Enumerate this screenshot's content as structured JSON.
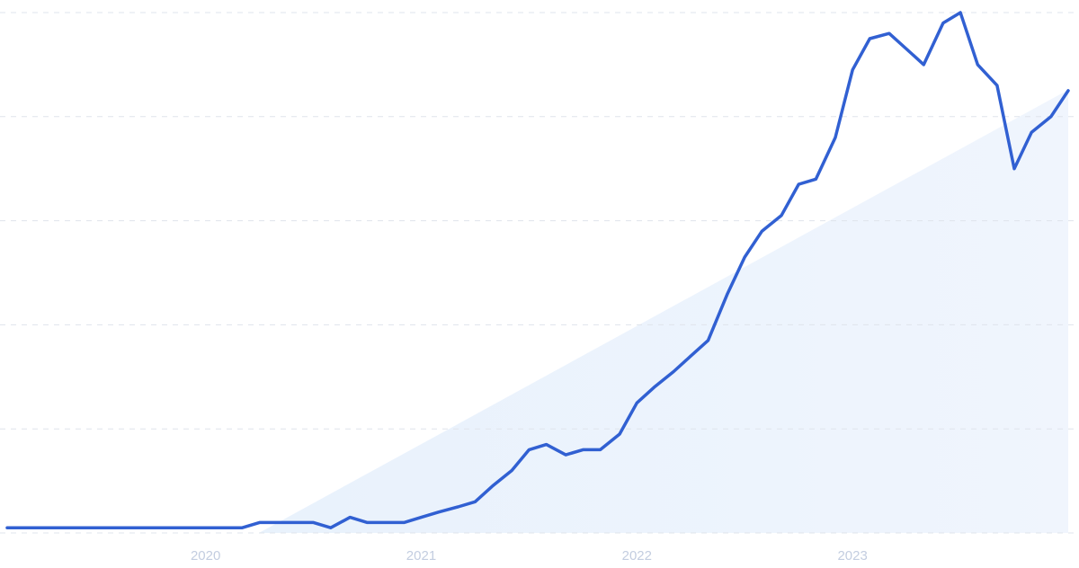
{
  "chart_data": {
    "type": "line",
    "x": [
      2019.08,
      2019.17,
      2019.25,
      2019.33,
      2019.42,
      2019.5,
      2019.58,
      2019.67,
      2019.75,
      2019.83,
      2019.92,
      2020,
      2020.08,
      2020.17,
      2020.25,
      2020.33,
      2020.42,
      2020.5,
      2020.58,
      2020.67,
      2020.75,
      2020.83,
      2020.92,
      2021,
      2021.08,
      2021.17,
      2021.25,
      2021.33,
      2021.42,
      2021.5,
      2021.58,
      2021.67,
      2021.75,
      2021.83,
      2021.92,
      2022,
      2022.08,
      2022.17,
      2022.25,
      2022.33,
      2022.42,
      2022.5,
      2022.58,
      2022.67,
      2022.75,
      2022.83,
      2022.92,
      2023,
      2023.08,
      2023.17,
      2023.25,
      2023.33,
      2023.42,
      2023.5,
      2023.58,
      2023.67,
      2023.75,
      2023.83,
      2023.92,
      2024
    ],
    "series": [
      {
        "color": "#3160d2",
        "values": [
          1,
          1,
          1,
          1,
          1,
          1,
          1,
          1,
          1,
          1,
          1,
          1,
          1,
          1,
          2,
          2,
          2,
          2,
          1,
          3,
          2,
          2,
          2,
          3,
          4,
          5,
          6,
          9,
          12,
          16,
          17,
          15,
          16,
          16,
          19,
          25,
          28,
          31,
          34,
          37,
          46,
          53,
          58,
          61,
          67,
          68,
          76,
          89,
          95,
          96,
          93,
          90,
          98,
          100,
          90,
          86,
          70,
          77,
          80,
          85
        ]
      }
    ],
    "xlim": [
      2019.08,
      2024
    ],
    "xticks": [
      2020,
      2021,
      2022,
      2023
    ],
    "ylim": [
      0,
      100
    ],
    "yticks": [
      0,
      20,
      40,
      60,
      80,
      100
    ],
    "grid": true
  }
}
